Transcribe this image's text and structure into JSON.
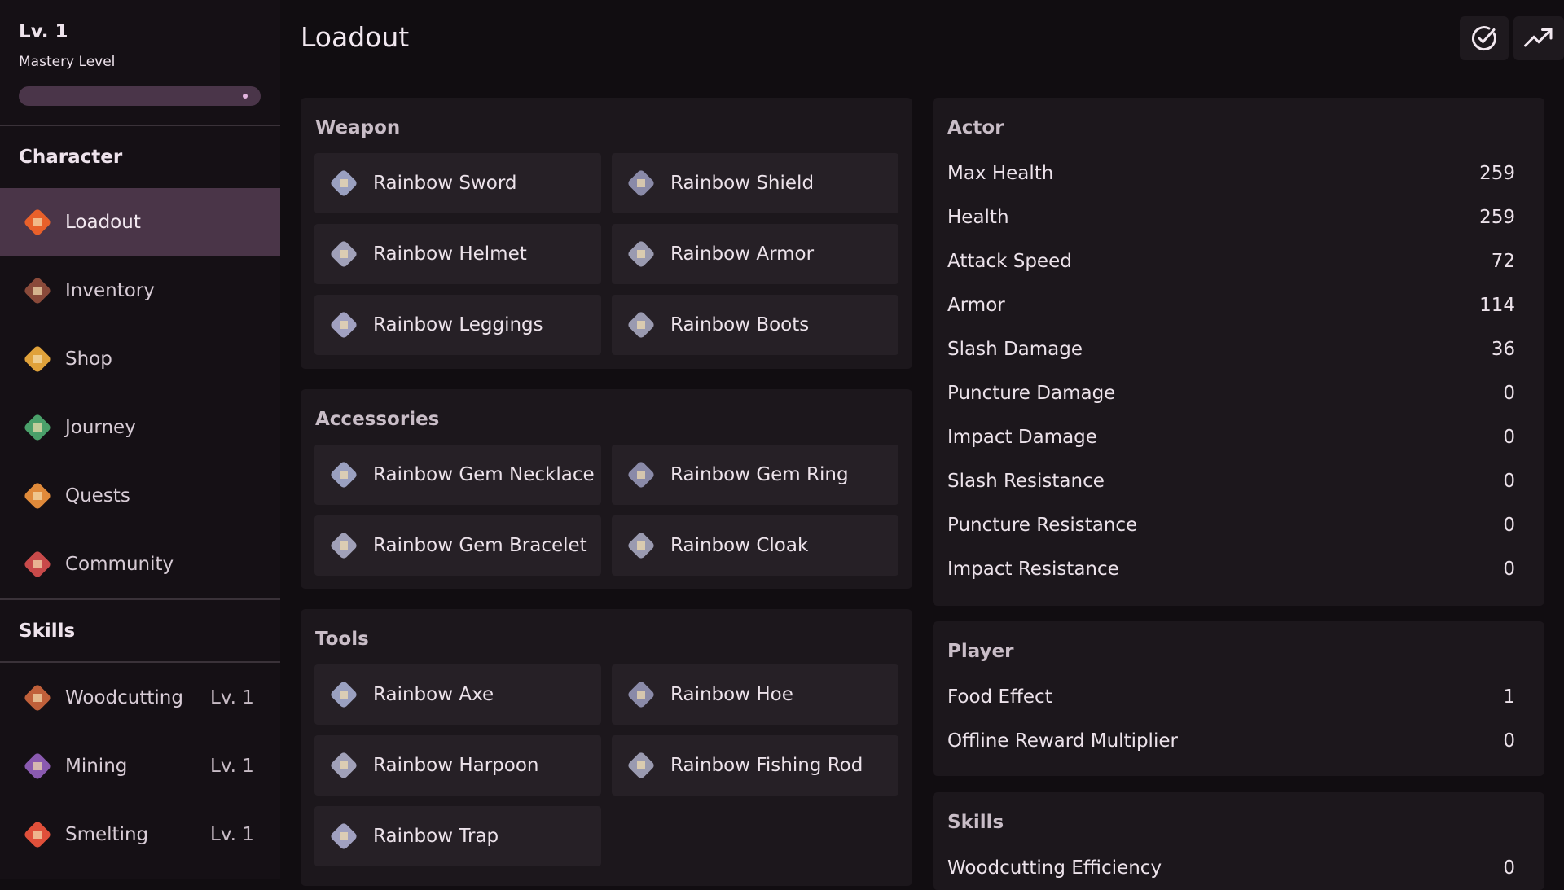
{
  "sidebar": {
    "level": "Lv. 1",
    "level_caption": "Mastery Level",
    "mastery_progress": 0.98,
    "character_header": "Character",
    "character_items": [
      {
        "label": "Loadout",
        "icon": "sword-icon",
        "color": "#e8602a",
        "active": true
      },
      {
        "label": "Inventory",
        "icon": "backpack-icon",
        "color": "#8a4a3a"
      },
      {
        "label": "Shop",
        "icon": "coins-icon",
        "color": "#e0a23a"
      },
      {
        "label": "Journey",
        "icon": "map-icon",
        "color": "#4aa06a"
      },
      {
        "label": "Quests",
        "icon": "scroll-icon",
        "color": "#e08a3a"
      },
      {
        "label": "Community",
        "icon": "people-icon",
        "color": "#c84a4a"
      }
    ],
    "skills_header": "Skills",
    "skill_items": [
      {
        "label": "Woodcutting",
        "level": "Lv. 1",
        "icon": "log-icon",
        "color": "#c0603a"
      },
      {
        "label": "Mining",
        "level": "Lv. 1",
        "icon": "ore-icon",
        "color": "#8a5ab0"
      },
      {
        "label": "Smelting",
        "level": "Lv. 1",
        "icon": "ingot-icon",
        "color": "#e0503a"
      }
    ]
  },
  "header": {
    "title": "Loadout",
    "buttons": [
      {
        "icon": "check-circle-icon"
      },
      {
        "icon": "trending-up-icon"
      }
    ]
  },
  "loadout": [
    {
      "title": "Weapon",
      "items": [
        "Rainbow Sword",
        "Rainbow Shield",
        "Rainbow Helmet",
        "Rainbow Armor",
        "Rainbow Leggings",
        "Rainbow Boots"
      ]
    },
    {
      "title": "Accessories",
      "items": [
        "Rainbow Gem Necklace",
        "Rainbow Gem Ring",
        "Rainbow Gem Bracelet",
        "Rainbow Cloak"
      ]
    },
    {
      "title": "Tools",
      "items": [
        "Rainbow Axe",
        "Rainbow Hoe",
        "Rainbow Harpoon",
        "Rainbow Fishing Rod",
        "Rainbow Trap"
      ]
    }
  ],
  "stats": [
    {
      "title": "Actor",
      "rows": [
        [
          "Max Health",
          "259"
        ],
        [
          "Health",
          "259"
        ],
        [
          "Attack Speed",
          "72"
        ],
        [
          "Armor",
          "114"
        ],
        [
          "Slash Damage",
          "36"
        ],
        [
          "Puncture Damage",
          "0"
        ],
        [
          "Impact Damage",
          "0"
        ],
        [
          "Slash Resistance",
          "0"
        ],
        [
          "Puncture Resistance",
          "0"
        ],
        [
          "Impact Resistance",
          "0"
        ]
      ]
    },
    {
      "title": "Player",
      "rows": [
        [
          "Food Effect",
          "1"
        ],
        [
          "Offline Reward Multiplier",
          "0"
        ]
      ]
    },
    {
      "title": "Skills",
      "rows": [
        [
          "Woodcutting Efficiency",
          "0"
        ]
      ]
    }
  ]
}
